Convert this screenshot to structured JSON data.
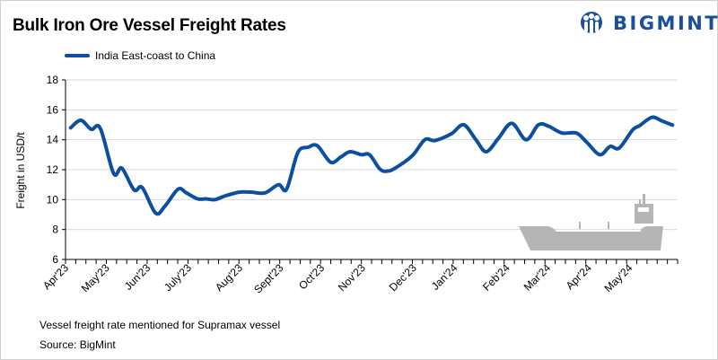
{
  "title": "Bulk Iron Ore Vessel Freight Rates",
  "logo": {
    "text": "BIGMINT",
    "color": "#1a4fa0"
  },
  "note": "Vessel freight rate mentioned for Supramax vessel",
  "source": "Source:  BigMint",
  "chart_data": {
    "type": "line",
    "title": "Bulk Iron Ore Vessel Freight Rates",
    "xlabel": "",
    "ylabel": "Freight  in USD/t",
    "ylim": [
      6,
      18
    ],
    "yticks": [
      6,
      8,
      10,
      12,
      14,
      16,
      18
    ],
    "xlim_weeks": [
      -0.5,
      59.3
    ],
    "grid": true,
    "legend_position": "top-left",
    "month_labels": [
      {
        "label": "Apr'23",
        "week": -0.5
      },
      {
        "label": "May'23",
        "week": 3.5
      },
      {
        "label": "Jun'23",
        "week": 7.5
      },
      {
        "label": "July'23",
        "week": 11.5
      },
      {
        "label": "Aug'23",
        "week": 16.5
      },
      {
        "label": "Sept'23",
        "week": 20.5
      },
      {
        "label": "Oct'23",
        "week": 24.5
      },
      {
        "label": "Nov'23",
        "week": 28.5
      },
      {
        "label": "Dec'23",
        "week": 33.5
      },
      {
        "label": "Jan'24",
        "week": 37.5
      },
      {
        "label": "Feb'24",
        "week": 42.6
      },
      {
        "label": "Mar'24",
        "week": 46.6
      },
      {
        "label": "Apr'24",
        "week": 50.6
      },
      {
        "label": "May'24",
        "week": 54.6
      }
    ],
    "series": [
      {
        "name": "India East-coast to China",
        "color": "#0b4ea2",
        "weeks": [
          0,
          1.0,
          2.0,
          2.9,
          4.2,
          5.0,
          6.2,
          7.0,
          8.3,
          9.2,
          10.5,
          11.3,
          12.4,
          13.2,
          14.1,
          15.1,
          16.5,
          17.6,
          19.0,
          20.3,
          21.1,
          22.2,
          23.2,
          24.1,
          25.4,
          26.4,
          27.3,
          28.4,
          29.2,
          30.2,
          30.9,
          31.7,
          33.4,
          34.6,
          35.6,
          37.2,
          38.4,
          39.6,
          40.6,
          41.8,
          43.1,
          44.5,
          45.7,
          46.7,
          48.0,
          49.4,
          50.4,
          51.7,
          52.7,
          53.6,
          54.9,
          55.6,
          56.8,
          57.8,
          58.8
        ],
        "values": [
          14.8,
          15.3,
          14.7,
          14.76,
          11.75,
          12.1,
          10.65,
          10.8,
          9.1,
          9.55,
          10.7,
          10.45,
          10.05,
          10.05,
          10.0,
          10.25,
          10.5,
          10.5,
          10.45,
          11.0,
          10.7,
          13.15,
          13.5,
          13.6,
          12.5,
          12.85,
          13.2,
          13.0,
          13.0,
          12.05,
          11.9,
          12.1,
          12.95,
          14.0,
          13.95,
          14.4,
          15.0,
          14.0,
          13.2,
          14.1,
          15.1,
          14.0,
          15.0,
          14.9,
          14.45,
          14.45,
          13.85,
          13.0,
          13.55,
          13.45,
          14.65,
          14.95,
          15.5,
          15.25,
          14.98
        ]
      }
    ]
  }
}
